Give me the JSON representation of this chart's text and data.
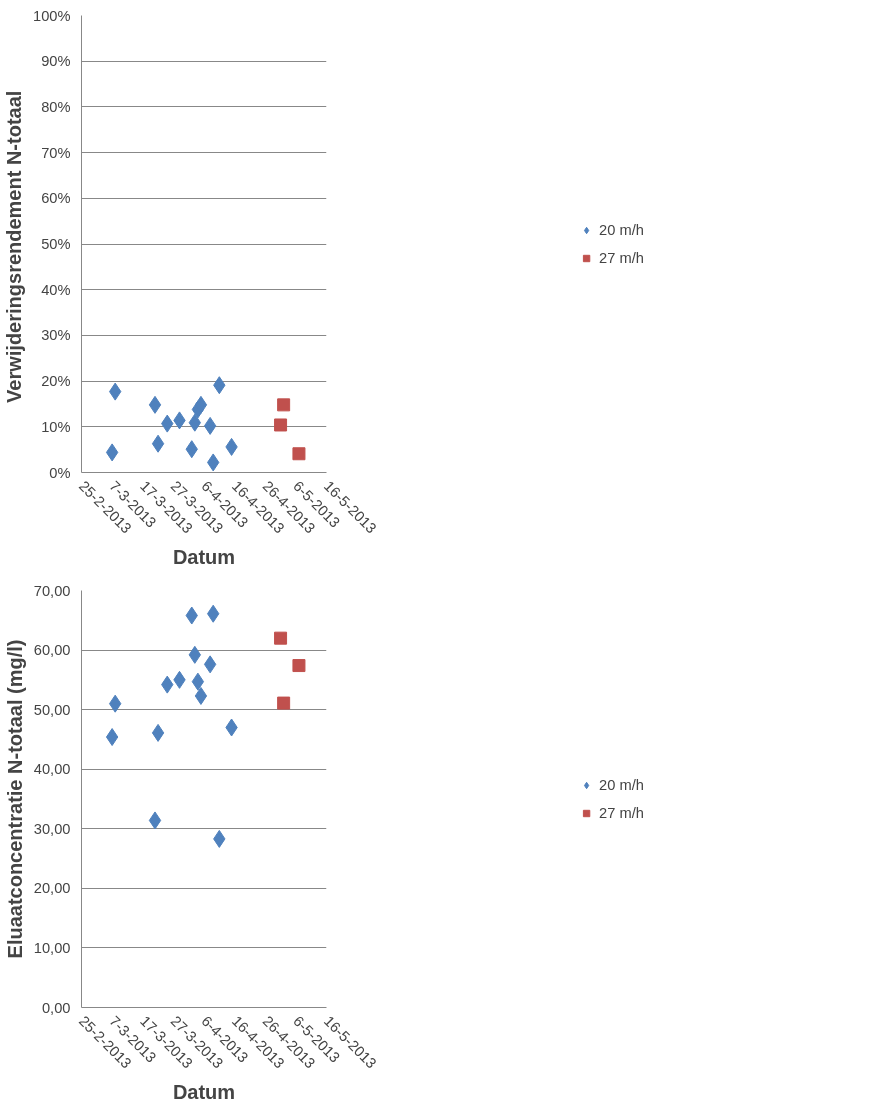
{
  "chart_data": [
    {
      "type": "scatter",
      "ylabel": "Verwijderingsrendement  N-totaal",
      "xlabel": "Datum",
      "grid": "y",
      "legend": "right",
      "xlim": [
        "2013-02-25",
        "2013-05-16"
      ],
      "xticks": [
        {
          "value": "2013-02-25",
          "label": "25-2-2013"
        },
        {
          "value": "2013-03-07",
          "label": "7-3-2013"
        },
        {
          "value": "2013-03-17",
          "label": "17-3-2013"
        },
        {
          "value": "2013-03-27",
          "label": "27-3-2013"
        },
        {
          "value": "2013-04-06",
          "label": "6-4-2013"
        },
        {
          "value": "2013-04-16",
          "label": "16-4-2013"
        },
        {
          "value": "2013-04-26",
          "label": "26-4-2013"
        },
        {
          "value": "2013-05-06",
          "label": "6-5-2013"
        },
        {
          "value": "2013-05-16",
          "label": "16-5-2013"
        }
      ],
      "ylim": [
        0,
        100
      ],
      "yticks": [
        {
          "value": 0,
          "label": "0%"
        },
        {
          "value": 10,
          "label": "10%"
        },
        {
          "value": 20,
          "label": "20%"
        },
        {
          "value": 30,
          "label": "30%"
        },
        {
          "value": 40,
          "label": "40%"
        },
        {
          "value": 50,
          "label": "50%"
        },
        {
          "value": 60,
          "label": "60%"
        },
        {
          "value": 70,
          "label": "70%"
        },
        {
          "value": 80,
          "label": "80%"
        },
        {
          "value": 90,
          "label": "90%"
        },
        {
          "value": 100,
          "label": "100%"
        }
      ],
      "series": [
        {
          "name": "20 m/h",
          "color": "#4f81bd",
          "marker": "diamond",
          "x": [
            "2013-03-07",
            "2013-03-08",
            "2013-03-21",
            "2013-03-22",
            "2013-03-25",
            "2013-03-29",
            "2013-04-02",
            "2013-04-03",
            "2013-04-04",
            "2013-04-05",
            "2013-04-08",
            "2013-04-09",
            "2013-04-11",
            "2013-04-15"
          ],
          "values": [
            4.4,
            17.7,
            14.8,
            6.3,
            10.7,
            11.4,
            5.1,
            10.9,
            13.8,
            14.8,
            10.2,
            2.2,
            19.1,
            5.6
          ]
        },
        {
          "name": "27 m/h",
          "color": "#c0504d",
          "marker": "square",
          "x": [
            "2013-05-01",
            "2013-05-02",
            "2013-05-07"
          ],
          "values": [
            10.4,
            14.8,
            4.1
          ]
        }
      ]
    },
    {
      "type": "scatter",
      "ylabel": "Eluaatconcentratie N-totaal (mg/l)",
      "xlabel": "Datum",
      "grid": "y",
      "legend": "right",
      "xlim": [
        "2013-02-25",
        "2013-05-16"
      ],
      "xticks": [
        {
          "value": "2013-02-25",
          "label": "25-2-2013"
        },
        {
          "value": "2013-03-07",
          "label": "7-3-2013"
        },
        {
          "value": "2013-03-17",
          "label": "17-3-2013"
        },
        {
          "value": "2013-03-27",
          "label": "27-3-2013"
        },
        {
          "value": "2013-04-06",
          "label": "6-4-2013"
        },
        {
          "value": "2013-04-16",
          "label": "16-4-2013"
        },
        {
          "value": "2013-04-26",
          "label": "26-4-2013"
        },
        {
          "value": "2013-05-06",
          "label": "6-5-2013"
        },
        {
          "value": "2013-05-16",
          "label": "16-5-2013"
        }
      ],
      "ylim": [
        0,
        70
      ],
      "yticks": [
        {
          "value": 0,
          "label": "0,00"
        },
        {
          "value": 10,
          "label": "10,00"
        },
        {
          "value": 20,
          "label": "20,00"
        },
        {
          "value": 30,
          "label": "30,00"
        },
        {
          "value": 40,
          "label": "40,00"
        },
        {
          "value": 50,
          "label": "50,00"
        },
        {
          "value": 60,
          "label": "60,00"
        },
        {
          "value": 70,
          "label": "70,00"
        }
      ],
      "series": [
        {
          "name": "20 m/h",
          "color": "#4f81bd",
          "marker": "diamond",
          "x": [
            "2013-03-07",
            "2013-03-08",
            "2013-03-21",
            "2013-03-22",
            "2013-03-25",
            "2013-03-29",
            "2013-04-02",
            "2013-04-03",
            "2013-04-04",
            "2013-04-05",
            "2013-04-08",
            "2013-04-09",
            "2013-04-11",
            "2013-04-15"
          ],
          "values": [
            45.4,
            51.0,
            31.4,
            46.1,
            54.2,
            55.0,
            65.8,
            59.2,
            54.7,
            52.3,
            57.6,
            66.1,
            28.3,
            47.0
          ]
        },
        {
          "name": "27 m/h",
          "color": "#c0504d",
          "marker": "square",
          "x": [
            "2013-05-01",
            "2013-05-02",
            "2013-05-07"
          ],
          "values": [
            62.0,
            51.1,
            57.4
          ]
        }
      ]
    }
  ]
}
